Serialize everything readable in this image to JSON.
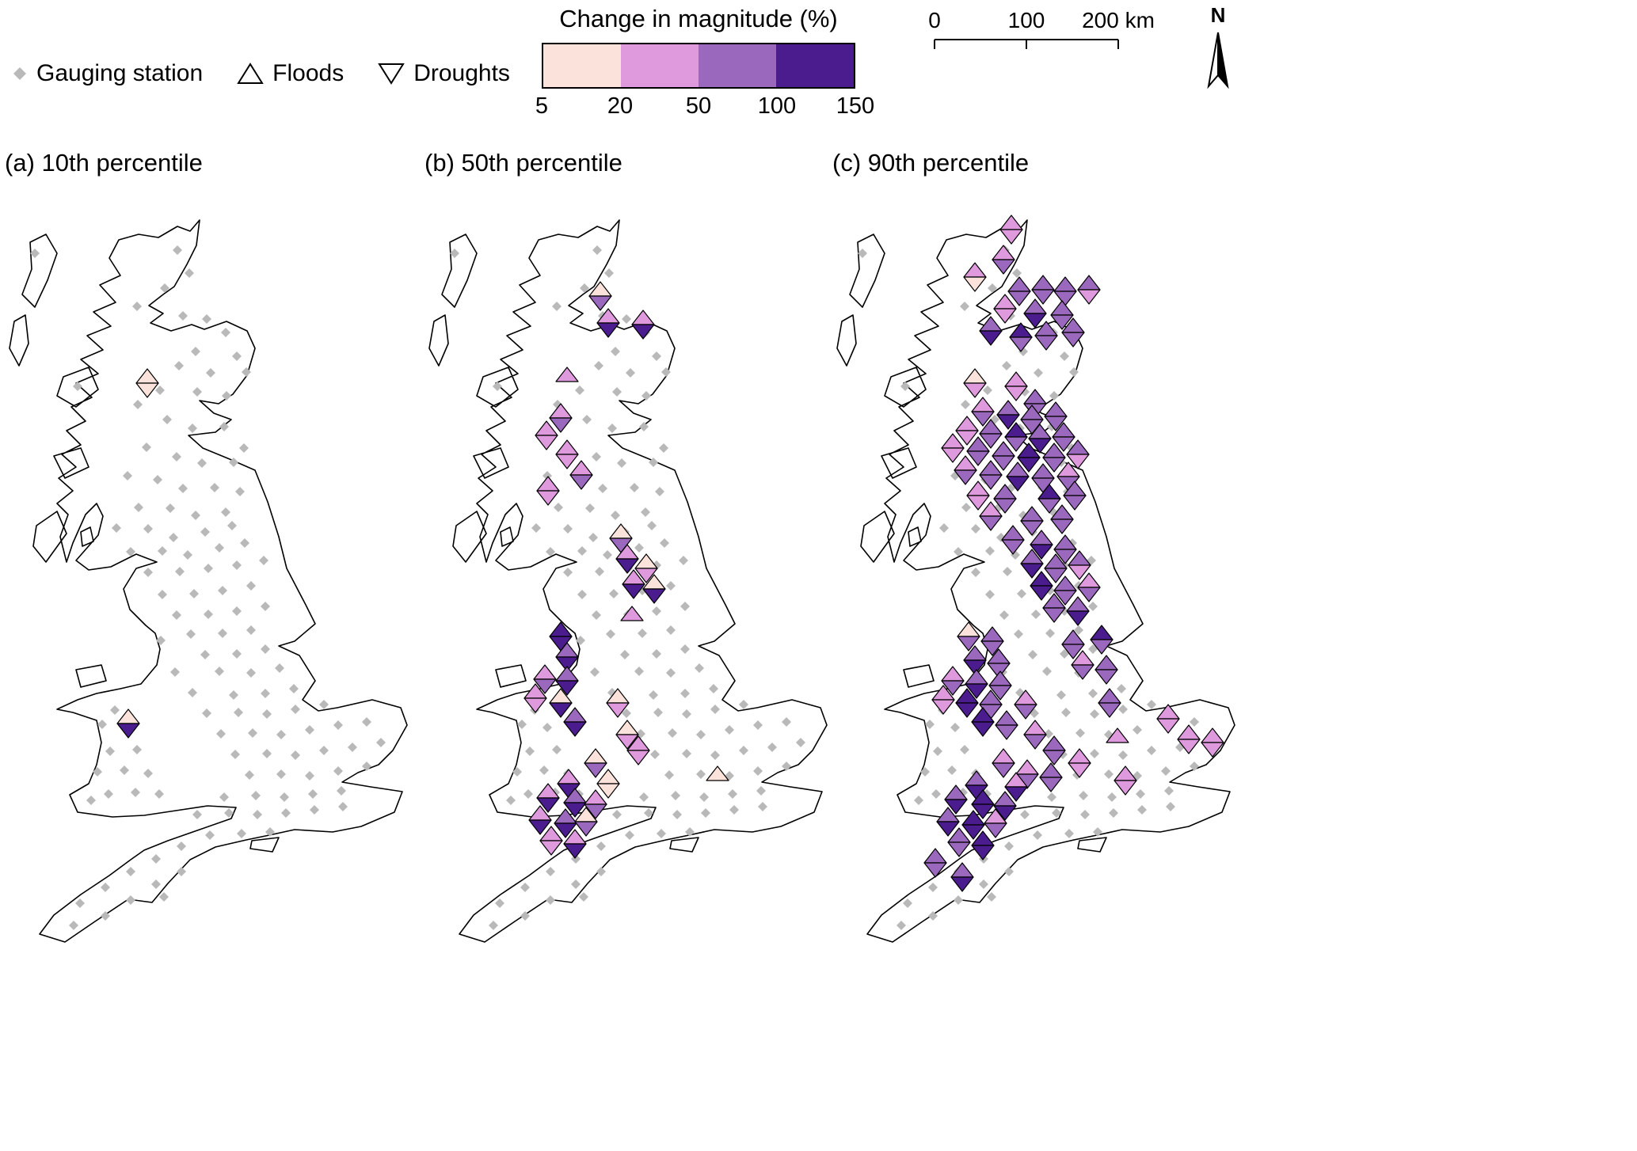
{
  "header": {
    "symbol_legend": {
      "gauging_station_label": "Gauging station",
      "floods_label": "Floods",
      "droughts_label": "Droughts"
    },
    "colorbar": {
      "title": "Change in magnitude (%)",
      "tick_labels": [
        "5",
        "20",
        "50",
        "100",
        "150"
      ],
      "bin_colors": [
        "#fbe3dc",
        "#df9ade",
        "#9a68bc",
        "#4b1c8e"
      ]
    },
    "scalebar": {
      "tick_labels": [
        "0",
        "100",
        "200 km"
      ]
    },
    "north_arrow_label": "N"
  },
  "map_style": {
    "station_color": "#b9b9b9",
    "coast_stroke": "#000000",
    "land_fill": "#ffffff",
    "marker_outline": "#000000"
  },
  "marker_format": "x,y,flood_bin,drought_bin (bins index header.colorbar.bin_colors, 0 = absent)",
  "stations": [
    [
      224,
      68
    ],
    [
      239,
      97
    ],
    [
      208,
      116
    ],
    [
      173,
      139
    ],
    [
      231,
      151
    ],
    [
      261,
      155
    ],
    [
      285,
      172
    ],
    [
      247,
      196
    ],
    [
      299,
      202
    ],
    [
      266,
      223
    ],
    [
      226,
      214
    ],
    [
      202,
      245
    ],
    [
      249,
      247
    ],
    [
      286,
      252
    ],
    [
      311,
      222
    ],
    [
      44,
      72
    ],
    [
      98,
      240
    ],
    [
      174,
      263
    ],
    [
      211,
      282
    ],
    [
      243,
      293
    ],
    [
      283,
      291
    ],
    [
      308,
      318
    ],
    [
      185,
      317
    ],
    [
      223,
      329
    ],
    [
      255,
      337
    ],
    [
      295,
      336
    ],
    [
      161,
      353
    ],
    [
      199,
      358
    ],
    [
      231,
      369
    ],
    [
      271,
      368
    ],
    [
      303,
      373
    ],
    [
      175,
      393
    ],
    [
      215,
      394
    ],
    [
      247,
      403
    ],
    [
      285,
      399
    ],
    [
      147,
      419
    ],
    [
      187,
      420
    ],
    [
      219,
      431
    ],
    [
      259,
      424
    ],
    [
      293,
      416
    ],
    [
      165,
      449
    ],
    [
      205,
      448
    ],
    [
      237,
      453
    ],
    [
      277,
      444
    ],
    [
      309,
      438
    ],
    [
      187,
      475
    ],
    [
      227,
      474
    ],
    [
      263,
      470
    ],
    [
      299,
      466
    ],
    [
      333,
      460
    ],
    [
      205,
      503
    ],
    [
      245,
      502
    ],
    [
      281,
      498
    ],
    [
      317,
      492
    ],
    [
      223,
      529
    ],
    [
      263,
      528
    ],
    [
      299,
      524
    ],
    [
      335,
      518
    ],
    [
      241,
      553
    ],
    [
      281,
      552
    ],
    [
      317,
      548
    ],
    [
      203,
      561
    ],
    [
      259,
      579
    ],
    [
      299,
      578
    ],
    [
      335,
      572
    ],
    [
      221,
      601
    ],
    [
      277,
      600
    ],
    [
      317,
      602
    ],
    [
      353,
      596
    ],
    [
      243,
      627
    ],
    [
      295,
      630
    ],
    [
      335,
      628
    ],
    [
      371,
      622
    ],
    [
      261,
      653
    ],
    [
      301,
      652
    ],
    [
      337,
      654
    ],
    [
      373,
      648
    ],
    [
      409,
      642
    ],
    [
      279,
      679
    ],
    [
      319,
      678
    ],
    [
      355,
      680
    ],
    [
      391,
      674
    ],
    [
      427,
      668
    ],
    [
      463,
      664
    ],
    [
      297,
      705
    ],
    [
      337,
      704
    ],
    [
      373,
      706
    ],
    [
      409,
      700
    ],
    [
      445,
      696
    ],
    [
      481,
      690
    ],
    [
      315,
      731
    ],
    [
      355,
      730
    ],
    [
      391,
      732
    ],
    [
      427,
      726
    ],
    [
      463,
      720
    ],
    [
      145,
      649
    ],
    [
      129,
      667
    ],
    [
      161,
      671
    ],
    [
      139,
      701
    ],
    [
      173,
      699
    ],
    [
      123,
      727
    ],
    [
      157,
      725
    ],
    [
      187,
      729
    ],
    [
      137,
      755
    ],
    [
      171,
      753
    ],
    [
      115,
      763
    ],
    [
      201,
      755
    ],
    [
      283,
      759
    ],
    [
      323,
      757
    ],
    [
      359,
      759
    ],
    [
      395,
      755
    ],
    [
      431,
      751
    ],
    [
      249,
      781
    ],
    [
      289,
      779
    ],
    [
      325,
      781
    ],
    [
      361,
      779
    ],
    [
      397,
      775
    ],
    [
      433,
      771
    ],
    [
      265,
      807
    ],
    [
      305,
      805
    ],
    [
      341,
      803
    ],
    [
      229,
      821
    ],
    [
      197,
      837
    ],
    [
      229,
      853
    ],
    [
      165,
      853
    ],
    [
      197,
      869
    ],
    [
      133,
      873
    ],
    [
      165,
      889
    ],
    [
      101,
      893
    ],
    [
      133,
      909
    ],
    [
      93,
      921
    ],
    [
      207,
      885
    ]
  ],
  "panels": [
    {
      "id": "a",
      "label": "(a) 10th percentile",
      "markers": [
        [
          186,
          236,
          1,
          1
        ],
        [
          162,
          666,
          1,
          4
        ]
      ]
    },
    {
      "id": "b",
      "label": "(b) 50th percentile",
      "markers": [
        [
          228,
          126,
          1,
          3
        ],
        [
          238,
          160,
          2,
          4
        ],
        [
          282,
          162,
          2,
          4
        ],
        [
          186,
          234,
          2,
          0
        ],
        [
          178,
          280,
          2,
          3
        ],
        [
          160,
          302,
          2,
          2
        ],
        [
          186,
          326,
          2,
          2
        ],
        [
          204,
          352,
          2,
          3
        ],
        [
          162,
          372,
          2,
          2
        ],
        [
          254,
          432,
          1,
          3
        ],
        [
          262,
          458,
          2,
          4
        ],
        [
          286,
          470,
          1,
          2
        ],
        [
          270,
          490,
          2,
          4
        ],
        [
          296,
          496,
          1,
          4
        ],
        [
          268,
          536,
          2,
          0
        ],
        [
          178,
          556,
          4,
          4
        ],
        [
          186,
          582,
          3,
          4
        ],
        [
          158,
          610,
          2,
          3
        ],
        [
          186,
          612,
          3,
          4
        ],
        [
          146,
          634,
          2,
          2
        ],
        [
          178,
          640,
          1,
          4
        ],
        [
          250,
          640,
          1,
          2
        ],
        [
          196,
          664,
          3,
          4
        ],
        [
          262,
          680,
          1,
          2
        ],
        [
          276,
          700,
          2,
          2
        ],
        [
          222,
          716,
          1,
          3
        ],
        [
          238,
          742,
          1,
          1
        ],
        [
          376,
          738,
          1,
          0
        ],
        [
          188,
          742,
          2,
          4
        ],
        [
          162,
          760,
          2,
          4
        ],
        [
          196,
          766,
          3,
          4
        ],
        [
          222,
          768,
          2,
          3
        ],
        [
          152,
          788,
          2,
          4
        ],
        [
          184,
          792,
          3,
          4
        ],
        [
          210,
          790,
          1,
          3
        ],
        [
          166,
          814,
          2,
          2
        ],
        [
          196,
          818,
          2,
          4
        ]
      ]
    },
    {
      "id": "c",
      "label": "(c) 90th percentile",
      "markers": [
        [
          232,
          42,
          2,
          2
        ],
        [
          222,
          80,
          2,
          3
        ],
        [
          186,
          102,
          2,
          1
        ],
        [
          242,
          120,
          3,
          3
        ],
        [
          272,
          118,
          3,
          3
        ],
        [
          300,
          120,
          3,
          3
        ],
        [
          330,
          118,
          3,
          2
        ],
        [
          224,
          142,
          2,
          2
        ],
        [
          262,
          148,
          3,
          4
        ],
        [
          296,
          150,
          3,
          3
        ],
        [
          206,
          170,
          3,
          4
        ],
        [
          244,
          178,
          4,
          3
        ],
        [
          276,
          176,
          3,
          3
        ],
        [
          310,
          172,
          3,
          3
        ],
        [
          186,
          236,
          1,
          2
        ],
        [
          238,
          240,
          2,
          2
        ],
        [
          262,
          262,
          3,
          3
        ],
        [
          196,
          272,
          2,
          3
        ],
        [
          228,
          276,
          3,
          4
        ],
        [
          258,
          282,
          3,
          3
        ],
        [
          288,
          278,
          3,
          3
        ],
        [
          176,
          296,
          2,
          2
        ],
        [
          206,
          300,
          3,
          3
        ],
        [
          238,
          304,
          4,
          3
        ],
        [
          268,
          306,
          3,
          4
        ],
        [
          298,
          304,
          3,
          3
        ],
        [
          158,
          318,
          2,
          2
        ],
        [
          190,
          322,
          3,
          3
        ],
        [
          222,
          328,
          3,
          3
        ],
        [
          254,
          330,
          4,
          4
        ],
        [
          286,
          330,
          3,
          3
        ],
        [
          316,
          326,
          3,
          2
        ],
        [
          174,
          346,
          2,
          3
        ],
        [
          206,
          352,
          3,
          3
        ],
        [
          240,
          354,
          3,
          4
        ],
        [
          272,
          356,
          3,
          3
        ],
        [
          304,
          354,
          2,
          3
        ],
        [
          190,
          378,
          2,
          2
        ],
        [
          224,
          382,
          3,
          3
        ],
        [
          280,
          382,
          4,
          3
        ],
        [
          312,
          378,
          3,
          3
        ],
        [
          206,
          404,
          2,
          3
        ],
        [
          258,
          410,
          3,
          3
        ],
        [
          296,
          408,
          3,
          3
        ],
        [
          234,
          434,
          3,
          3
        ],
        [
          270,
          440,
          3,
          4
        ],
        [
          300,
          446,
          3,
          3
        ],
        [
          258,
          464,
          3,
          4
        ],
        [
          288,
          470,
          3,
          3
        ],
        [
          318,
          466,
          3,
          2
        ],
        [
          270,
          492,
          4,
          4
        ],
        [
          300,
          498,
          3,
          3
        ],
        [
          330,
          494,
          2,
          3
        ],
        [
          286,
          520,
          3,
          3
        ],
        [
          316,
          524,
          3,
          4
        ],
        [
          346,
          560,
          4,
          3
        ],
        [
          310,
          566,
          3,
          3
        ],
        [
          178,
          556,
          1,
          3
        ],
        [
          208,
          562,
          3,
          3
        ],
        [
          186,
          586,
          3,
          4
        ],
        [
          216,
          590,
          3,
          3
        ],
        [
          322,
          592,
          2,
          3
        ],
        [
          352,
          598,
          3,
          3
        ],
        [
          158,
          612,
          2,
          3
        ],
        [
          188,
          616,
          3,
          4
        ],
        [
          218,
          618,
          3,
          3
        ],
        [
          146,
          636,
          2,
          2
        ],
        [
          176,
          640,
          4,
          4
        ],
        [
          206,
          642,
          3,
          3
        ],
        [
          250,
          642,
          2,
          3
        ],
        [
          356,
          640,
          3,
          3
        ],
        [
          430,
          660,
          2,
          2
        ],
        [
          196,
          664,
          4,
          4
        ],
        [
          226,
          668,
          3,
          3
        ],
        [
          262,
          680,
          2,
          3
        ],
        [
          286,
          700,
          3,
          3
        ],
        [
          366,
          690,
          2,
          0
        ],
        [
          456,
          686,
          2,
          2
        ],
        [
          486,
          690,
          2,
          2
        ],
        [
          222,
          716,
          2,
          3
        ],
        [
          318,
          716,
          2,
          2
        ],
        [
          252,
          730,
          2,
          3
        ],
        [
          282,
          734,
          3,
          3
        ],
        [
          238,
          746,
          2,
          4
        ],
        [
          376,
          738,
          2,
          2
        ],
        [
          188,
          744,
          3,
          4
        ],
        [
          162,
          762,
          3,
          4
        ],
        [
          196,
          768,
          4,
          4
        ],
        [
          224,
          770,
          3,
          4
        ],
        [
          152,
          790,
          3,
          4
        ],
        [
          184,
          794,
          4,
          4
        ],
        [
          212,
          792,
          2,
          3
        ],
        [
          166,
          816,
          3,
          3
        ],
        [
          196,
          820,
          4,
          4
        ],
        [
          136,
          842,
          3,
          3
        ],
        [
          170,
          860,
          3,
          4
        ]
      ]
    }
  ]
}
